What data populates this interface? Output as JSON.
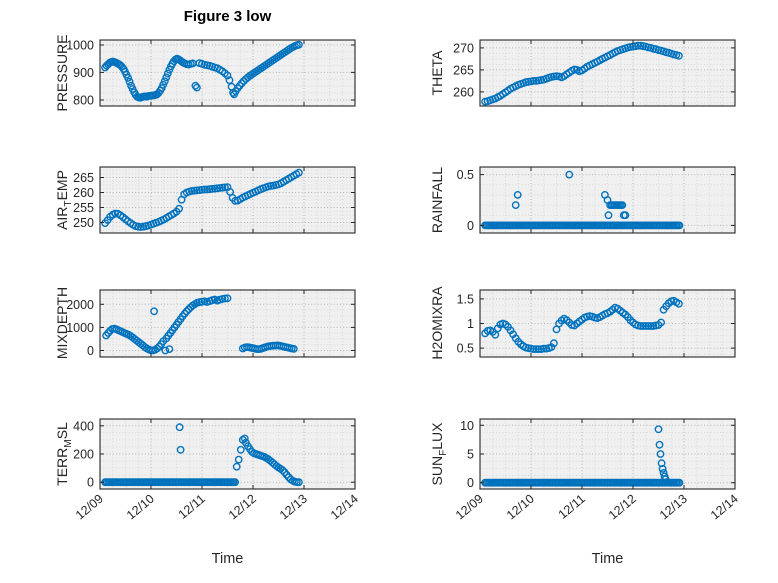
{
  "title": "Figure 3 low",
  "xlabel": "Time",
  "colors": {
    "marker": "#0072BD",
    "axis": "#262626",
    "grid_major": "#b5b5b5",
    "grid_minor": "#d8d8d8",
    "plot_bg": "#f0f0f0"
  },
  "chart_data": {
    "type": "scatter",
    "marker": "open-circle",
    "layout": "4x2 subplot grid, shared time axis",
    "x_axis": {
      "lim": [
        9,
        14
      ],
      "tick_values": [
        9,
        10,
        11,
        12,
        13,
        14
      ],
      "tick_labels": [
        "12/09",
        "12/10",
        "12/11",
        "12/12",
        "12/13",
        "12/14"
      ],
      "minor_step": 0.25
    },
    "subplots": [
      {
        "id": "pressure",
        "ylabel": {
          "pre": "PRESSURE",
          "sub": "",
          "post": ""
        },
        "ylim": [
          778,
          1018
        ],
        "ytick_values": [
          800,
          900,
          1000
        ],
        "ytick_labels": [
          "800",
          "900",
          "1000"
        ],
        "yminor_step": 25,
        "x": [
          9.1,
          9.13,
          9.16,
          9.19,
          9.22,
          9.25,
          9.28,
          9.31,
          9.34,
          9.37,
          9.4,
          9.43,
          9.46,
          9.49,
          9.52,
          9.55,
          9.58,
          9.61,
          9.64,
          9.67,
          9.7,
          9.73,
          9.76,
          9.79,
          9.82,
          9.85,
          9.88,
          9.91,
          9.94,
          9.97,
          10.0,
          10.03,
          10.06,
          10.09,
          10.12,
          10.15,
          10.18,
          10.21,
          10.24,
          10.27,
          10.3,
          10.33,
          10.36,
          10.39,
          10.42,
          10.45,
          10.48,
          10.51,
          10.54,
          10.57,
          10.6,
          10.63,
          10.66,
          10.7,
          10.74,
          10.78,
          10.82,
          10.87,
          10.9,
          10.95,
          11.0,
          11.05,
          11.1,
          11.15,
          11.2,
          11.25,
          11.3,
          11.35,
          11.4,
          11.45,
          11.5,
          11.54,
          11.58,
          11.61,
          11.63,
          11.66,
          11.7,
          11.74,
          11.78,
          11.82,
          11.86,
          11.9,
          11.94,
          11.98,
          12.02,
          12.06,
          12.1,
          12.14,
          12.18,
          12.22,
          12.26,
          12.3,
          12.34,
          12.38,
          12.42,
          12.46,
          12.5,
          12.54,
          12.58,
          12.62,
          12.66,
          12.7,
          12.74,
          12.78,
          12.82,
          12.86,
          12.9
        ],
        "y": [
          918,
          925,
          930,
          935,
          938,
          940,
          938,
          936,
          933,
          930,
          926,
          921,
          913,
          903,
          892,
          880,
          866,
          852,
          840,
          828,
          818,
          812,
          809,
          808,
          810,
          812,
          813,
          812,
          814,
          815,
          815,
          816,
          817,
          818,
          820,
          826,
          834,
          843,
          855,
          868,
          882,
          896,
          910,
          922,
          932,
          941,
          947,
          950,
          948,
          944,
          940,
          936,
          933,
          930,
          929,
          931,
          933,
          852,
          845,
          934,
          931,
          928,
          926,
          924,
          921,
          918,
          915,
          910,
          904,
          897,
          889,
          872,
          848,
          826,
          820,
          832,
          843,
          852,
          861,
          869,
          876,
          882,
          888,
          893,
          898,
          903,
          908,
          913,
          918,
          923,
          928,
          933,
          938,
          943,
          948,
          953,
          958,
          963,
          968,
          973,
          978,
          983,
          988,
          992,
          996,
          999,
          1001
        ]
      },
      {
        "id": "theta",
        "ylabel": {
          "pre": "THETA",
          "sub": "",
          "post": ""
        },
        "ylim": [
          256.8,
          271.8
        ],
        "ytick_values": [
          260,
          265,
          270
        ],
        "ytick_labels": [
          "260",
          "265",
          "270"
        ],
        "yminor_step": 1.25,
        "x_range": [
          9.1,
          12.9,
          0.05
        ],
        "y": [
          257.8,
          257.9,
          258.1,
          258.3,
          258.5,
          258.8,
          259.1,
          259.5,
          259.9,
          260.3,
          260.7,
          261.0,
          261.3,
          261.6,
          261.8,
          262.0,
          262.2,
          262.3,
          262.4,
          262.5,
          262.5,
          262.6,
          262.7,
          262.8,
          263.0,
          263.2,
          263.4,
          263.5,
          263.6,
          263.5,
          263.3,
          263.6,
          264.0,
          264.4,
          264.8,
          265.1,
          265.0,
          264.7,
          264.9,
          265.3,
          265.7,
          266.0,
          266.3,
          266.6,
          266.9,
          267.2,
          267.5,
          267.8,
          268.1,
          268.4,
          268.7,
          269.0,
          269.3,
          269.5,
          269.7,
          269.9,
          270.1,
          270.2,
          270.3,
          270.4,
          270.5,
          270.5,
          270.4,
          270.3,
          270.1,
          270.0,
          269.8,
          269.7,
          269.5,
          269.4,
          269.2,
          269.0,
          268.9,
          268.7,
          268.5,
          268.4,
          268.2
        ]
      },
      {
        "id": "air-temp",
        "ylabel": {
          "pre": "AIR",
          "sub": "T",
          "post": "EMP"
        },
        "ylim": [
          246.5,
          268.5
        ],
        "ytick_values": [
          250,
          255,
          260,
          265
        ],
        "ytick_labels": [
          "250",
          "255",
          "260",
          "265"
        ],
        "yminor_step": 1.25,
        "x_range": [
          9.1,
          12.9,
          0.05
        ],
        "y": [
          249.8,
          250.8,
          251.9,
          252.6,
          253.0,
          252.9,
          252.4,
          251.8,
          251.1,
          250.4,
          249.8,
          249.2,
          248.8,
          248.6,
          248.5,
          248.6,
          248.8,
          249.0,
          249.3,
          249.6,
          249.9,
          250.2,
          250.6,
          251.0,
          251.5,
          252.0,
          252.5,
          253.0,
          253.6,
          254.6,
          257.6,
          259.4,
          260.0,
          260.3,
          260.5,
          260.6,
          260.7,
          260.8,
          260.9,
          261.0,
          261.0,
          261.1,
          261.2,
          261.3,
          261.4,
          261.5,
          261.6,
          261.7,
          261.8,
          260.2,
          258.2,
          257.2,
          257.3,
          257.8,
          258.3,
          258.7,
          259.1,
          259.5,
          259.9,
          260.3,
          260.7,
          261.1,
          261.4,
          261.7,
          262.0,
          262.2,
          262.3,
          262.5,
          262.7,
          263.1,
          263.6,
          264.1,
          264.6,
          265.1,
          265.6,
          266.1,
          266.6
        ]
      },
      {
        "id": "rainfall",
        "ylabel": {
          "pre": "RAINFALL",
          "sub": "",
          "post": ""
        },
        "ylim": [
          -0.075,
          0.575
        ],
        "ytick_values": [
          0,
          0.5
        ],
        "ytick_labels": [
          "0",
          "0.5"
        ],
        "yminor_step": 0.1,
        "zero_runs": [
          [
            9.1,
            12.9,
            0.03
          ]
        ],
        "x": [
          9.7,
          9.74,
          10.75,
          11.45,
          11.5,
          11.52,
          11.55,
          11.58,
          11.61,
          11.64,
          11.67,
          11.7,
          11.73,
          11.76,
          11.79,
          11.82,
          11.85
        ],
        "y": [
          0.2,
          0.3,
          0.5,
          0.3,
          0.25,
          0.1,
          0.2,
          0.2,
          0.2,
          0.2,
          0.2,
          0.2,
          0.2,
          0.2,
          0.2,
          0.1,
          0.1
        ]
      },
      {
        "id": "mixdepth",
        "ylabel": {
          "pre": "MIXDEPTH",
          "sub": "",
          "post": ""
        },
        "ylim": [
          -280,
          2620
        ],
        "ytick_values": [
          0,
          1000,
          2000
        ],
        "ytick_labels": [
          "0",
          "1000",
          "2000"
        ],
        "yminor_step": 250,
        "x": [
          9.12,
          9.16,
          9.2,
          9.24,
          9.28,
          9.32,
          9.36,
          9.4,
          9.44,
          9.48,
          9.52,
          9.56,
          9.6,
          9.64,
          9.68,
          9.72,
          9.76,
          9.8,
          9.84,
          9.88,
          9.92,
          9.96,
          10.0,
          10.04,
          10.06,
          10.08,
          10.12,
          10.16,
          10.2,
          10.24,
          10.28,
          10.3,
          10.34,
          10.36,
          10.38,
          10.42,
          10.46,
          10.5,
          10.54,
          10.58,
          10.62,
          10.66,
          10.7,
          10.74,
          10.78,
          10.82,
          10.86,
          10.9,
          10.95,
          11.0,
          11.05,
          11.1,
          11.15,
          11.2,
          11.25,
          11.3,
          11.35,
          11.4,
          11.45,
          11.5,
          11.8,
          11.84,
          11.88,
          11.92,
          11.96,
          12.0,
          12.04,
          12.08,
          12.12,
          12.16,
          12.2,
          12.24,
          12.28,
          12.32,
          12.36,
          12.4,
          12.44,
          12.48,
          12.52,
          12.56,
          12.6,
          12.64,
          12.68,
          12.72,
          12.76,
          12.8
        ],
        "y": [
          650,
          760,
          860,
          930,
          950,
          920,
          880,
          840,
          800,
          760,
          720,
          680,
          630,
          570,
          500,
          430,
          360,
          290,
          220,
          150,
          90,
          40,
          10,
          0,
          1700,
          30,
          90,
          170,
          280,
          400,
          0,
          520,
          640,
          60,
          760,
          880,
          1000,
          1120,
          1240,
          1360,
          1480,
          1600,
          1700,
          1790,
          1870,
          1950,
          2010,
          2060,
          2090,
          2110,
          2130,
          2100,
          2140,
          2180,
          2210,
          2160,
          2200,
          2230,
          2250,
          2260,
          90,
          130,
          150,
          140,
          120,
          100,
          80,
          60,
          60,
          80,
          110,
          140,
          170,
          190,
          200,
          210,
          215,
          220,
          210,
          190,
          170,
          150,
          130,
          110,
          90,
          70
        ]
      },
      {
        "id": "h2omixra",
        "ylabel": {
          "pre": "H2OMIXRA",
          "sub": "",
          "post": ""
        },
        "ylim": [
          0.32,
          1.68
        ],
        "ytick_values": [
          0.5,
          1,
          1.5
        ],
        "ytick_labels": [
          "0.5",
          "1",
          "1.5"
        ],
        "yminor_step": 0.125,
        "x_range": [
          9.1,
          12.9,
          0.05
        ],
        "y": [
          0.8,
          0.85,
          0.86,
          0.83,
          0.77,
          0.9,
          0.98,
          1.0,
          0.98,
          0.93,
          0.86,
          0.78,
          0.7,
          0.63,
          0.58,
          0.54,
          0.51,
          0.5,
          0.49,
          0.48,
          0.48,
          0.48,
          0.48,
          0.49,
          0.49,
          0.5,
          0.52,
          0.6,
          0.88,
          1.0,
          1.06,
          1.1,
          1.07,
          1.02,
          0.97,
          0.96,
          1.0,
          1.04,
          1.08,
          1.12,
          1.14,
          1.15,
          1.14,
          1.12,
          1.11,
          1.13,
          1.16,
          1.19,
          1.21,
          1.24,
          1.28,
          1.32,
          1.3,
          1.26,
          1.22,
          1.18,
          1.13,
          1.07,
          1.02,
          0.98,
          0.96,
          0.95,
          0.95,
          0.95,
          0.95,
          0.95,
          0.95,
          0.96,
          0.97,
          1.02,
          1.28,
          1.35,
          1.41,
          1.45,
          1.46,
          1.43,
          1.4
        ]
      },
      {
        "id": "terr-msl",
        "ylabel": {
          "pre": "TERR",
          "sub": "M",
          "post": "SL"
        },
        "ylim": [
          -48,
          448
        ],
        "ytick_values": [
          0,
          200,
          400
        ],
        "ytick_labels": [
          "0",
          "200",
          "400"
        ],
        "yminor_step": 50,
        "zero_runs": [
          [
            9.1,
            11.64,
            0.03
          ]
        ],
        "x": [
          10.56,
          10.58,
          11.68,
          11.72,
          11.76,
          11.8,
          11.84,
          11.86,
          11.9,
          11.94,
          11.98,
          12.02,
          12.06,
          12.1,
          12.14,
          12.18,
          12.22,
          12.26,
          12.3,
          12.34,
          12.38,
          12.42,
          12.46,
          12.5,
          12.54,
          12.58,
          12.62,
          12.66,
          12.7,
          12.74,
          12.78,
          12.82,
          12.86,
          12.9
        ],
        "y": [
          390,
          230,
          110,
          160,
          230,
          300,
          310,
          280,
          255,
          235,
          215,
          205,
          200,
          195,
          190,
          185,
          180,
          172,
          163,
          152,
          140,
          128,
          115,
          104,
          95,
          85,
          70,
          52,
          35,
          20,
          10,
          4,
          1,
          0
        ]
      },
      {
        "id": "sun-flux",
        "ylabel": {
          "pre": "SUN",
          "sub": "F",
          "post": "LUX"
        },
        "ylim": [
          -1.1,
          11.1
        ],
        "ytick_values": [
          0,
          5,
          10
        ],
        "ytick_labels": [
          "0",
          "5",
          "10"
        ],
        "yminor_step": 1.25,
        "zero_runs": [
          [
            9.1,
            12.9,
            0.03
          ]
        ],
        "x": [
          12.5,
          12.52,
          12.54,
          12.56,
          12.58,
          12.6,
          12.62,
          12.64
        ],
        "y": [
          9.3,
          6.6,
          5.0,
          3.4,
          2.4,
          1.7,
          1.1,
          0.6
        ]
      }
    ]
  }
}
